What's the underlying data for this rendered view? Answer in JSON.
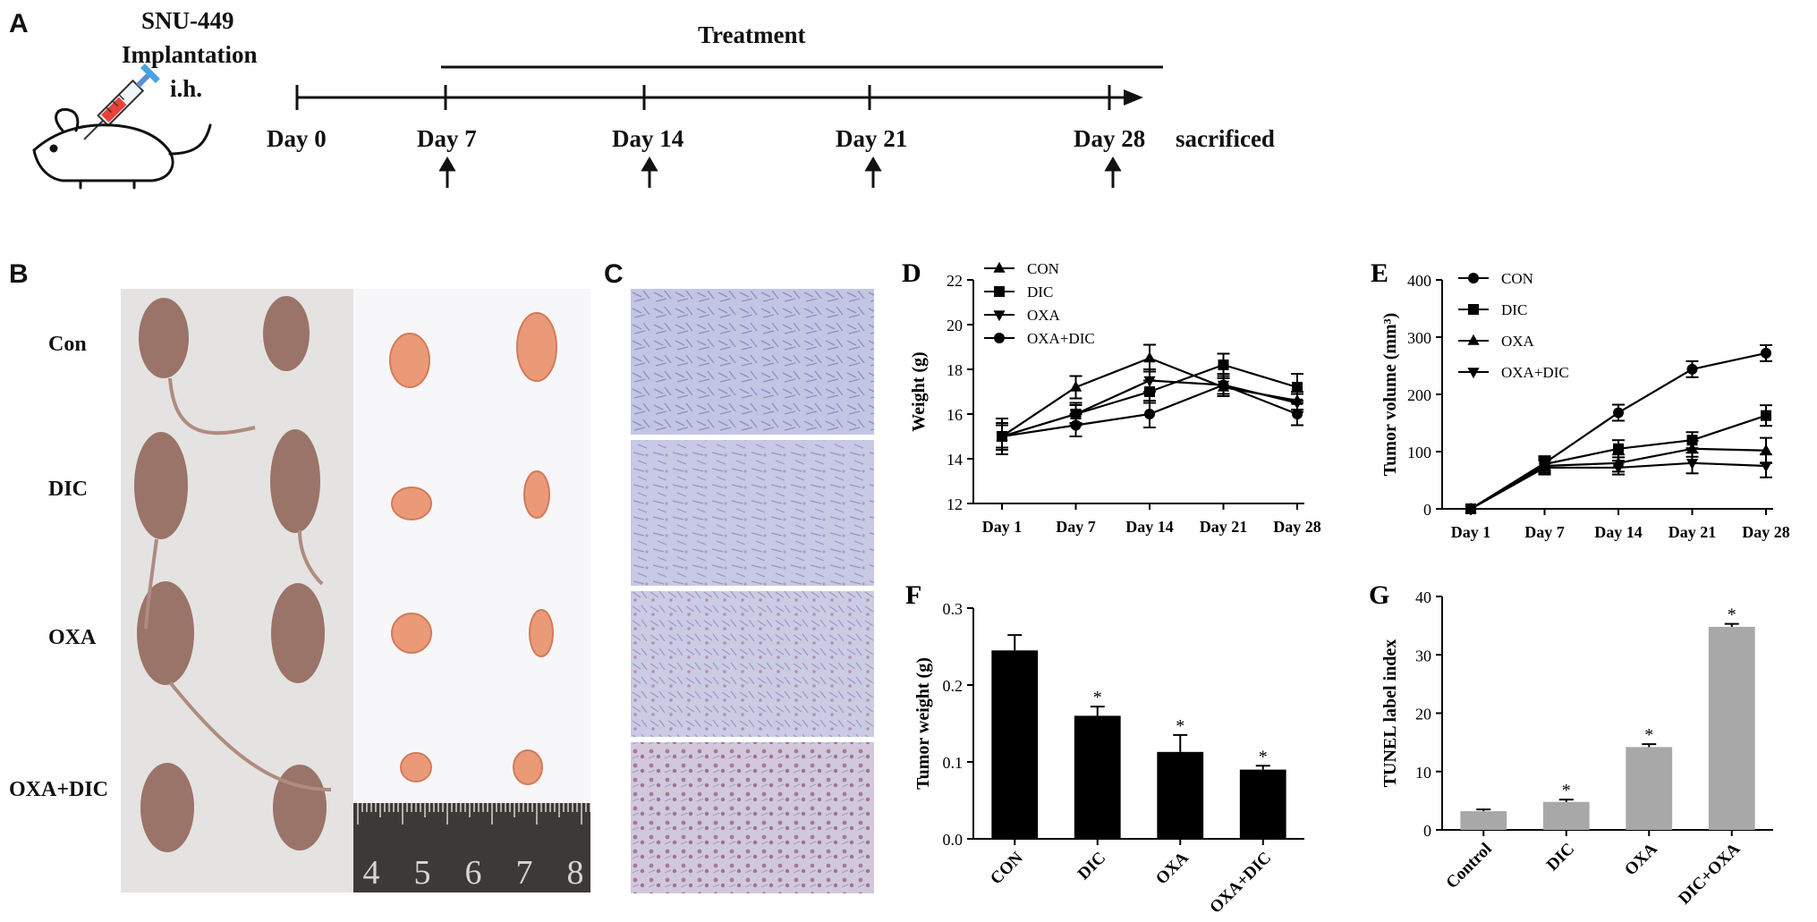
{
  "panel_a": {
    "label": "A",
    "cell_line": "SNU-449",
    "implantation": "Implantation",
    "route": "i.h.",
    "treatment": "Treatment",
    "days": [
      "Day 0",
      "Day 7",
      "Day 14",
      "Day 21",
      "Day 28"
    ],
    "end_label": "sacrificed"
  },
  "panel_b": {
    "label": "B",
    "groups": [
      "Con",
      "DIC",
      "OXA",
      "OXA+DIC"
    ],
    "ruler_numbers": [
      "4",
      "5",
      "6",
      "7",
      "8"
    ]
  },
  "panel_c": {
    "label": "C"
  },
  "colors": {
    "bar_black": "#000000",
    "bar_grey": "#a8a8a8",
    "ihc_stain": "#b6b9dc",
    "skin": "#9a7468",
    "tumor": "#eb9a78"
  },
  "chart_data": [
    {
      "panel": "D",
      "type": "line",
      "ylabel": "Weight (g)",
      "categories": [
        "Day 1",
        "Day 7",
        "Day 14",
        "Day 21",
        "Day 28"
      ],
      "ylim": [
        12,
        22
      ],
      "yticks": [
        "12",
        "14",
        "16",
        "18",
        "20",
        "22"
      ],
      "legend_position": "top-left",
      "series": [
        {
          "name": "CON",
          "marker": "triangle-up",
          "values": [
            15.0,
            17.2,
            18.5,
            17.2,
            16.6
          ],
          "errors": [
            0.5,
            0.5,
            0.6,
            0.4,
            0.4
          ]
        },
        {
          "name": "DIC",
          "marker": "square",
          "values": [
            15.0,
            16.0,
            17.0,
            18.2,
            17.2
          ],
          "errors": [
            0.6,
            0.5,
            0.5,
            0.5,
            0.6
          ]
        },
        {
          "name": "OXA",
          "marker": "triangle-down",
          "values": [
            15.0,
            16.0,
            17.5,
            17.3,
            16.5
          ],
          "errors": [
            0.5,
            0.4,
            0.5,
            0.4,
            0.4
          ]
        },
        {
          "name": "OXA+DIC",
          "marker": "circle",
          "values": [
            15.0,
            15.5,
            16.0,
            17.3,
            16.0
          ],
          "errors": [
            0.8,
            0.5,
            0.6,
            0.5,
            0.5
          ]
        }
      ]
    },
    {
      "panel": "E",
      "type": "line",
      "ylabel": "Tumor volume (mm³)",
      "categories": [
        "Day 1",
        "Day 7",
        "Day 14",
        "Day 21",
        "Day 28"
      ],
      "ylim": [
        0,
        400
      ],
      "yticks": [
        "0",
        "100",
        "200",
        "300",
        "400"
      ],
      "legend_position": "top-left",
      "series": [
        {
          "name": "CON",
          "marker": "circle",
          "values": [
            0,
            80,
            168,
            244,
            272
          ],
          "errors": [
            0,
            12,
            14,
            14,
            14
          ]
        },
        {
          "name": "DIC",
          "marker": "square",
          "values": [
            0,
            78,
            105,
            120,
            163
          ],
          "errors": [
            0,
            12,
            15,
            14,
            18
          ]
        },
        {
          "name": "OXA",
          "marker": "triangle-up",
          "values": [
            0,
            75,
            80,
            105,
            102
          ],
          "errors": [
            0,
            12,
            15,
            14,
            22
          ]
        },
        {
          "name": "OXA+DIC",
          "marker": "triangle-down",
          "values": [
            0,
            72,
            72,
            80,
            75
          ],
          "errors": [
            0,
            12,
            12,
            18,
            20
          ]
        }
      ]
    },
    {
      "panel": "F",
      "type": "bar",
      "ylabel": "Tumor weight (g)",
      "categories": [
        "CON",
        "DIC",
        "OXA",
        "OXA+DIC"
      ],
      "values": [
        0.245,
        0.16,
        0.113,
        0.09
      ],
      "errors": [
        0.02,
        0.012,
        0.022,
        0.005
      ],
      "significance": [
        "",
        "*",
        "*",
        "*"
      ],
      "ylim": [
        0,
        0.3
      ],
      "yticks": [
        "0.0",
        "0.1",
        "0.2",
        "0.3"
      ]
    },
    {
      "panel": "G",
      "type": "bar",
      "ylabel": "TUNEL label index",
      "categories": [
        "Control",
        "DIC",
        "OXA",
        "DIC+OXA"
      ],
      "values": [
        3.2,
        4.8,
        14.2,
        34.8
      ],
      "errors": [
        0.3,
        0.4,
        0.5,
        0.5
      ],
      "significance": [
        "",
        "*",
        "*",
        "*"
      ],
      "ylim": [
        0,
        40
      ],
      "yticks": [
        "0",
        "10",
        "20",
        "30",
        "40"
      ]
    }
  ]
}
